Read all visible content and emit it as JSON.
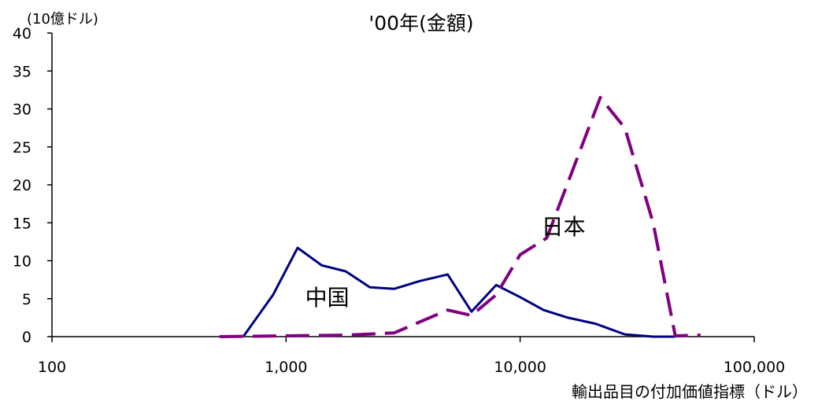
{
  "chart_data": {
    "type": "line",
    "title": "'00年(金額)",
    "ylabel": "(10億ドル)",
    "xlabel": "輸出品目の付加価値指標（ドル）",
    "x_scale": "log",
    "xlim": [
      100,
      100000
    ],
    "ylim": [
      0,
      40
    ],
    "x_ticks": [
      100,
      1000,
      10000,
      100000
    ],
    "x_tick_labels": [
      "100",
      "1,000",
      "10,000",
      "100,000"
    ],
    "y_ticks": [
      0,
      5,
      10,
      15,
      20,
      25,
      30,
      35,
      40
    ],
    "y_tick_labels": [
      "0",
      "5",
      "10",
      "15",
      "20",
      "25",
      "30",
      "35",
      "40"
    ],
    "grid": false,
    "legend": "none",
    "series": [
      {
        "name": "中国",
        "color": "#000080",
        "style": "solid",
        "x": [
          660,
          880,
          1120,
          1420,
          1800,
          2280,
          2900,
          3700,
          4900,
          6200,
          7900,
          10000,
          12600,
          16000,
          21000,
          28000,
          37000,
          46000
        ],
        "y": [
          0.1,
          5.5,
          11.7,
          9.4,
          8.6,
          6.5,
          6.3,
          7.3,
          8.2,
          3.3,
          6.8,
          5.2,
          3.5,
          2.5,
          1.7,
          0.3,
          0.0,
          0.0
        ]
      },
      {
        "name": "日本",
        "color": "#800080",
        "style": "dashed",
        "x": [
          520,
          1000,
          1800,
          2900,
          4900,
          6200,
          7900,
          10000,
          13000,
          22000,
          28000,
          37000,
          46000,
          59000
        ],
        "y": [
          0.0,
          0.1,
          0.2,
          0.5,
          3.5,
          2.8,
          5.5,
          10.8,
          13.0,
          31.5,
          27.5,
          15.0,
          0.1,
          0.2
        ]
      }
    ],
    "annotations": [
      {
        "text": "中国",
        "x": 1500,
        "y": 5.2
      },
      {
        "text": "日本",
        "x": 15300,
        "y": 14.5
      }
    ]
  }
}
